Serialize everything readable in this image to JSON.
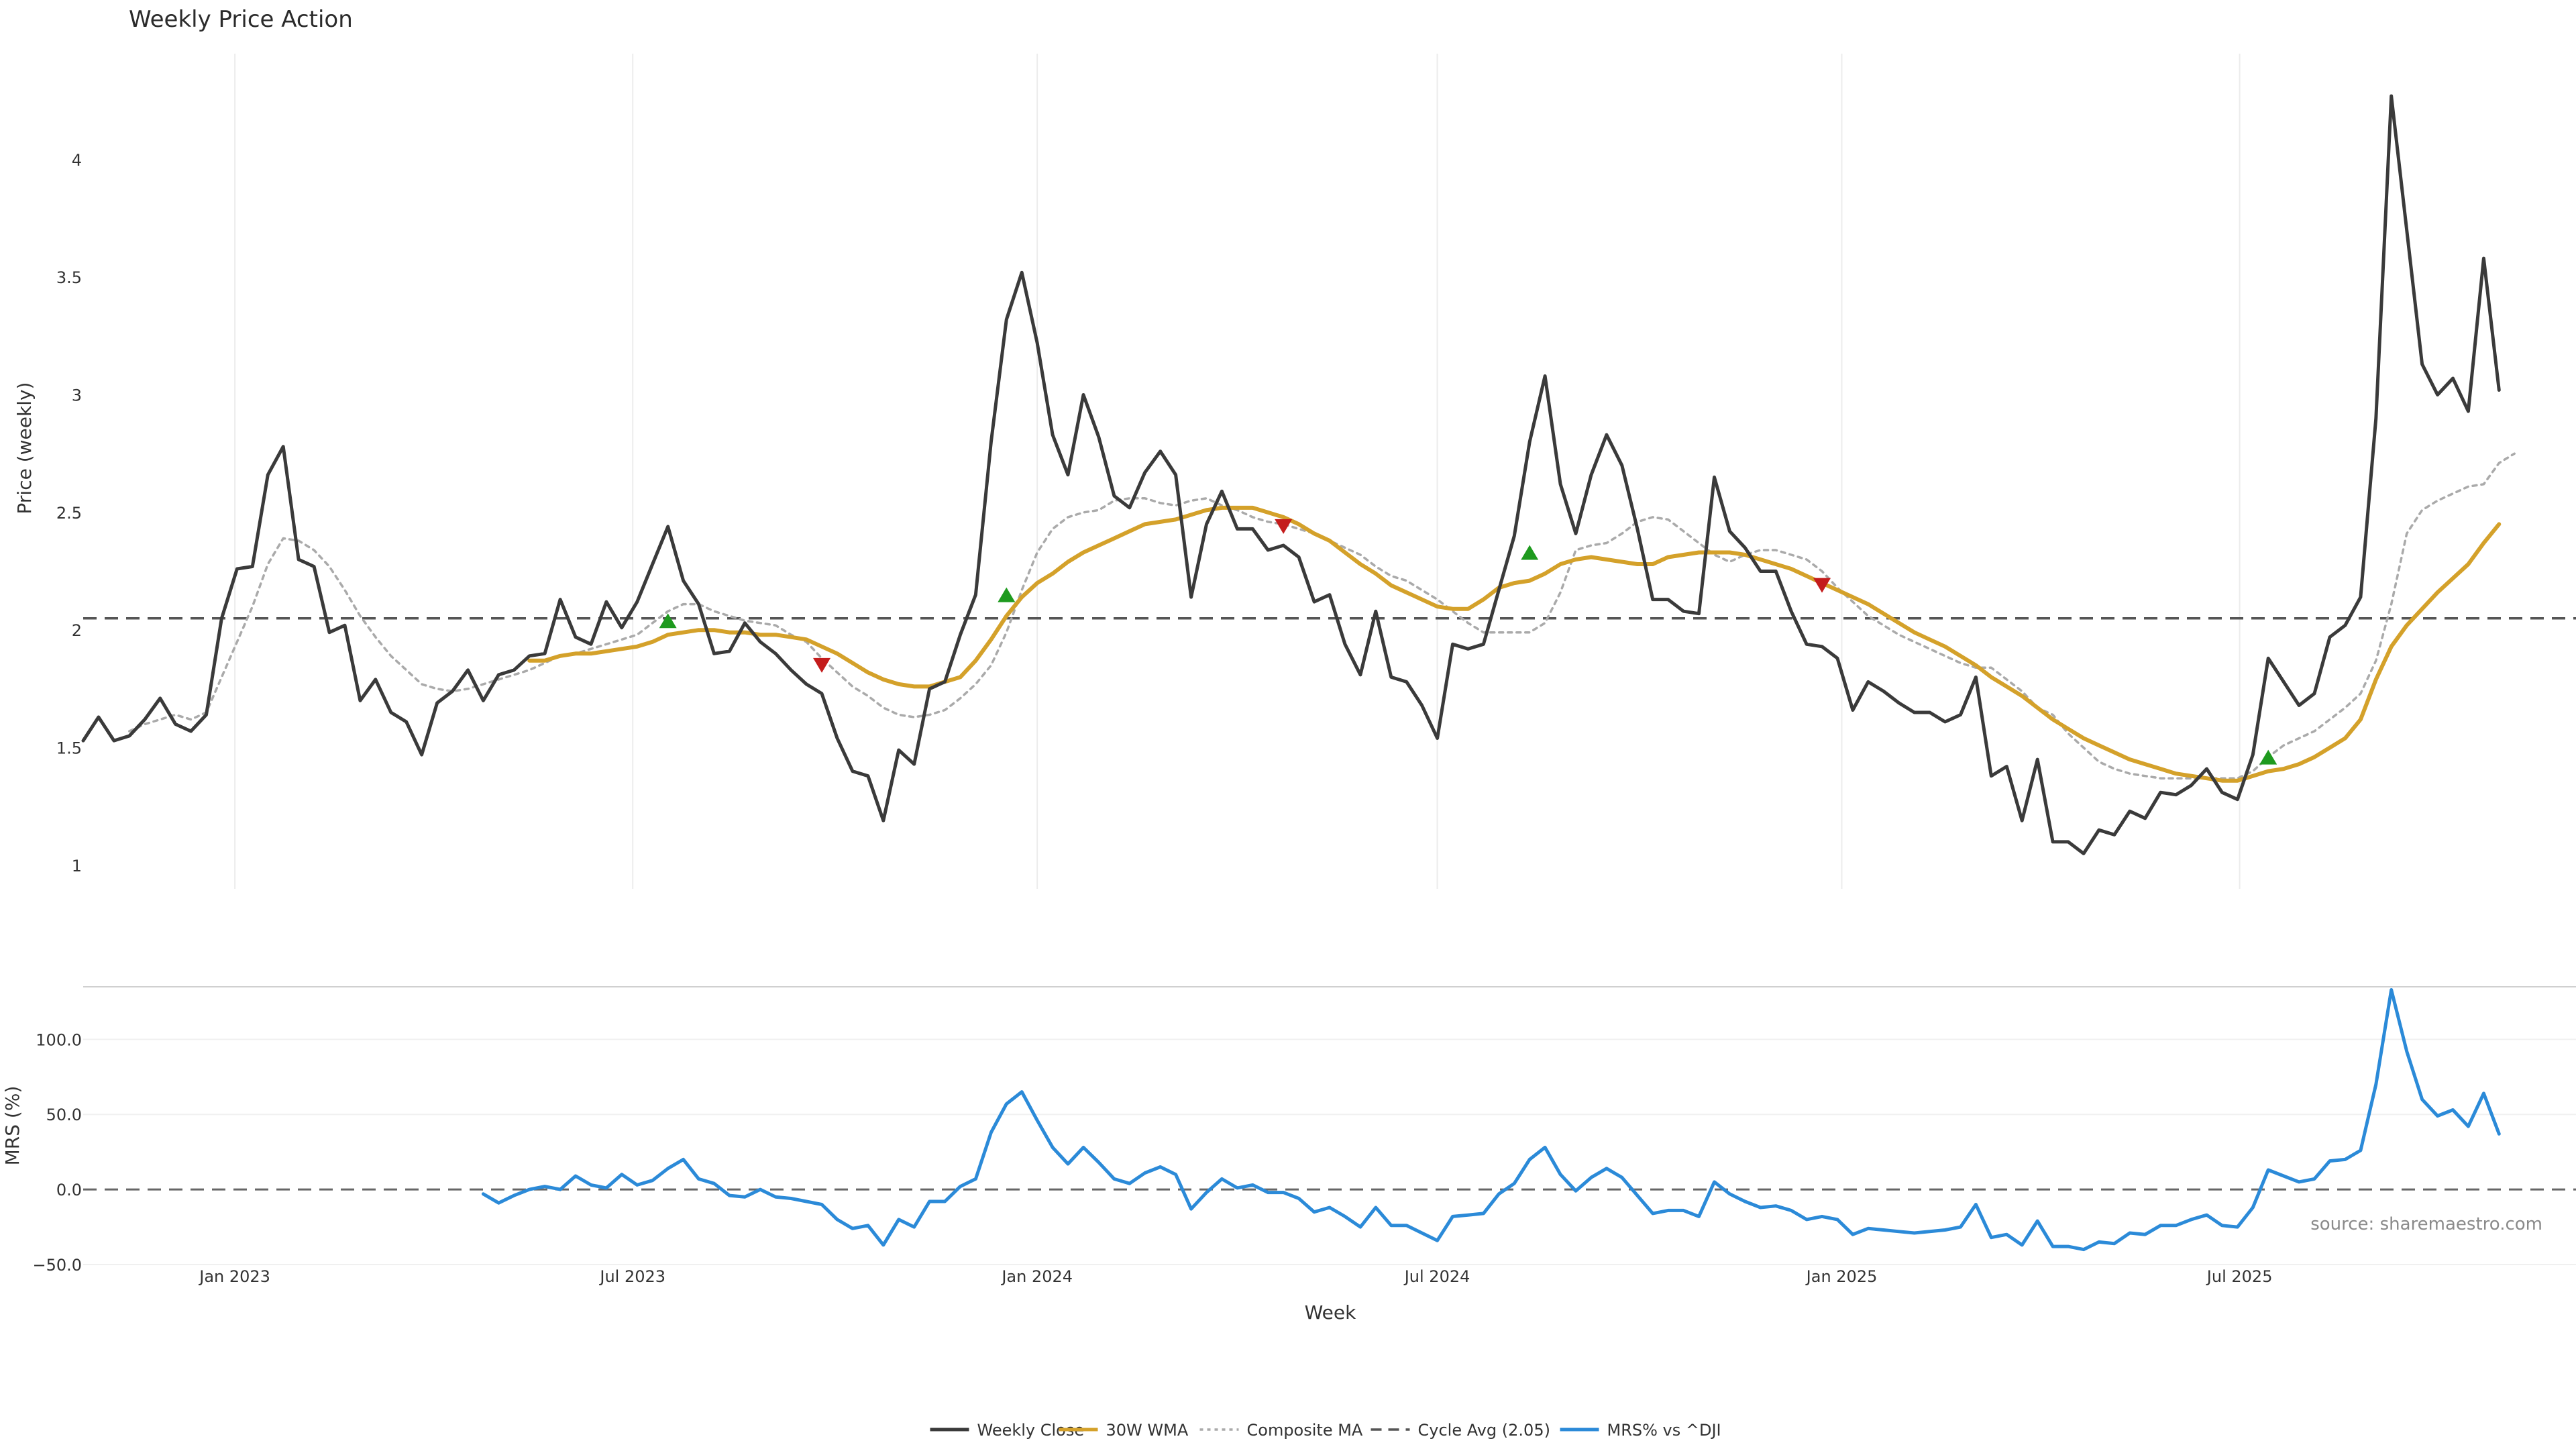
{
  "chart_data": {
    "type": "line",
    "title": "Weekly Price Action",
    "source": "source: sharemaestro.com",
    "x_start": "2022-10-24",
    "xlim": [
      "2022-10-24",
      "2025-12-01"
    ],
    "x_ticks": [
      {
        "date": "2023-01-01",
        "label": "Jan 2023"
      },
      {
        "date": "2023-07-01",
        "label": "Jul 2023"
      },
      {
        "date": "2024-01-01",
        "label": "Jan 2024"
      },
      {
        "date": "2024-07-01",
        "label": "Jul 2024"
      },
      {
        "date": "2025-01-01",
        "label": "Jan 2025"
      },
      {
        "date": "2025-07-01",
        "label": "Jul 2025"
      }
    ],
    "xlabel": "Week",
    "price_panel": {
      "ylabel": "Price (weekly)",
      "ylim": [
        0.9,
        4.45
      ],
      "y_ticks": [
        1,
        1.5,
        2,
        2.5,
        3,
        3.5,
        4
      ],
      "cycle_avg": 2.05,
      "series": [
        {
          "name": "Weekly Close",
          "color": "#3a3a3a",
          "start_index": 0,
          "values": [
            1.53,
            1.63,
            1.53,
            1.55,
            1.62,
            1.71,
            1.6,
            1.57,
            1.64,
            2.05,
            2.26,
            2.27,
            2.66,
            2.78,
            2.3,
            2.27,
            1.99,
            2.02,
            1.7,
            1.79,
            1.65,
            1.61,
            1.47,
            1.69,
            1.74,
            1.83,
            1.7,
            1.81,
            1.83,
            1.89,
            1.9,
            2.13,
            1.97,
            1.94,
            2.12,
            2.01,
            2.12,
            2.28,
            2.44,
            2.21,
            2.11,
            1.9,
            1.91,
            2.03,
            1.95,
            1.9,
            1.83,
            1.77,
            1.73,
            1.54,
            1.4,
            1.38,
            1.19,
            1.49,
            1.43,
            1.75,
            1.78,
            1.98,
            2.15,
            2.8,
            3.32,
            3.52,
            3.22,
            2.83,
            2.66,
            3.0,
            2.82,
            2.57,
            2.52,
            2.67,
            2.76,
            2.66,
            2.14,
            2.45,
            2.59,
            2.43,
            2.43,
            2.34,
            2.36,
            2.31,
            2.12,
            2.15,
            1.94,
            1.81,
            2.08,
            1.8,
            1.78,
            1.68,
            1.54,
            1.94,
            1.92,
            1.94,
            2.17,
            2.4,
            2.8,
            3.08,
            2.62,
            2.41,
            2.66,
            2.83,
            2.7,
            2.43,
            2.13,
            2.13,
            2.08,
            2.07,
            2.65,
            2.42,
            2.35,
            2.25,
            2.25,
            2.08,
            1.94,
            1.93,
            1.88,
            1.66,
            1.78,
            1.74,
            1.69,
            1.65,
            1.65,
            1.61,
            1.64,
            1.8,
            1.38,
            1.42,
            1.19,
            1.45,
            1.1,
            1.1,
            1.05,
            1.15,
            1.13,
            1.23,
            1.2,
            1.31,
            1.3,
            1.34,
            1.41,
            1.31,
            1.28,
            1.47,
            1.88,
            1.78,
            1.68,
            1.73,
            1.97,
            2.02,
            2.14,
            2.9,
            4.27,
            3.7,
            3.13,
            3.0,
            3.07,
            2.93,
            3.58,
            3.02
          ]
        },
        {
          "name": "30W WMA",
          "color": "#d4a12a",
          "start_index": 29,
          "values": [
            1.87,
            1.87,
            1.89,
            1.9,
            1.9,
            1.91,
            1.92,
            1.93,
            1.95,
            1.98,
            1.99,
            2.0,
            2.0,
            1.99,
            1.99,
            1.98,
            1.98,
            1.97,
            1.96,
            1.93,
            1.9,
            1.86,
            1.82,
            1.79,
            1.77,
            1.76,
            1.76,
            1.78,
            1.8,
            1.87,
            1.96,
            2.06,
            2.14,
            2.2,
            2.24,
            2.29,
            2.33,
            2.36,
            2.39,
            2.42,
            2.45,
            2.46,
            2.47,
            2.49,
            2.51,
            2.52,
            2.52,
            2.52,
            2.5,
            2.48,
            2.45,
            2.41,
            2.38,
            2.33,
            2.28,
            2.24,
            2.19,
            2.16,
            2.13,
            2.1,
            2.09,
            2.09,
            2.13,
            2.18,
            2.2,
            2.21,
            2.24,
            2.28,
            2.3,
            2.31,
            2.3,
            2.29,
            2.28,
            2.28,
            2.31,
            2.32,
            2.33,
            2.33,
            2.33,
            2.32,
            2.3,
            2.28,
            2.26,
            2.23,
            2.2,
            2.17,
            2.14,
            2.11,
            2.07,
            2.03,
            1.99,
            1.96,
            1.93,
            1.89,
            1.85,
            1.8,
            1.76,
            1.72,
            1.67,
            1.62,
            1.58,
            1.54,
            1.51,
            1.48,
            1.45,
            1.43,
            1.41,
            1.39,
            1.38,
            1.37,
            1.36,
            1.36,
            1.38,
            1.4,
            1.41,
            1.43,
            1.46,
            1.5,
            1.54,
            1.62,
            1.79,
            1.93,
            2.02,
            2.09,
            2.16,
            2.22,
            2.28,
            2.37,
            2.45
          ]
        },
        {
          "name": "Composite MA",
          "color": "#aaaaaa",
          "start_index": 3,
          "values": [
            1.57,
            1.6,
            1.62,
            1.64,
            1.62,
            1.65,
            1.8,
            1.95,
            2.1,
            2.28,
            2.39,
            2.38,
            2.34,
            2.27,
            2.17,
            2.06,
            1.97,
            1.89,
            1.83,
            1.77,
            1.75,
            1.74,
            1.75,
            1.77,
            1.79,
            1.81,
            1.83,
            1.86,
            1.89,
            1.9,
            1.92,
            1.94,
            1.96,
            1.98,
            2.03,
            2.08,
            2.11,
            2.11,
            2.08,
            2.06,
            2.04,
            2.03,
            2.02,
            1.98,
            1.95,
            1.88,
            1.82,
            1.76,
            1.72,
            1.67,
            1.64,
            1.63,
            1.64,
            1.66,
            1.71,
            1.77,
            1.85,
            1.99,
            2.17,
            2.33,
            2.43,
            2.48,
            2.5,
            2.51,
            2.55,
            2.56,
            2.56,
            2.54,
            2.53,
            2.55,
            2.56,
            2.53,
            2.51,
            2.48,
            2.46,
            2.45,
            2.43,
            2.41,
            2.38,
            2.35,
            2.32,
            2.27,
            2.23,
            2.21,
            2.17,
            2.13,
            2.08,
            2.03,
            1.99,
            1.99,
            1.99,
            1.99,
            2.03,
            2.16,
            2.34,
            2.36,
            2.37,
            2.41,
            2.46,
            2.48,
            2.47,
            2.42,
            2.37,
            2.32,
            2.29,
            2.32,
            2.34,
            2.34,
            2.32,
            2.3,
            2.25,
            2.18,
            2.12,
            2.06,
            2.02,
            1.98,
            1.95,
            1.92,
            1.89,
            1.86,
            1.84,
            1.84,
            1.79,
            1.74,
            1.67,
            1.64,
            1.56,
            1.5,
            1.44,
            1.41,
            1.39,
            1.38,
            1.37,
            1.37,
            1.37,
            1.37,
            1.37,
            1.37,
            1.4,
            1.46,
            1.51,
            1.54,
            1.57,
            1.62,
            1.67,
            1.73,
            1.87,
            2.11,
            2.41,
            2.51,
            2.55,
            2.58,
            2.61,
            2.62,
            2.71,
            2.75
          ]
        }
      ],
      "buy_signals": [
        {
          "index": 38,
          "value": 2.04
        },
        {
          "index": 60,
          "value": 2.15
        },
        {
          "index": 94,
          "value": 2.33
        },
        {
          "index": 142,
          "value": 1.46
        }
      ],
      "sell_signals": [
        {
          "index": 48,
          "value": 1.85
        },
        {
          "index": 78,
          "value": 2.44
        },
        {
          "index": 113,
          "value": 2.19
        }
      ]
    },
    "mrs_panel": {
      "ylabel": "MRS (%)",
      "ylim": [
        -50,
        135
      ],
      "y_ticks": [
        -50,
        0,
        50,
        100
      ],
      "y_tick_labels": [
        "−50.0",
        "0.0",
        "50.0",
        "100.0"
      ],
      "zero_line": 0,
      "series": {
        "name": "MRS% vs ^DJI",
        "color": "#2b8ad8",
        "start_index": 26,
        "values": [
          -3,
          -9,
          -4,
          0,
          2,
          0,
          9,
          3,
          1,
          10,
          3,
          6,
          14,
          20,
          7,
          4,
          -4,
          -5,
          0,
          -5,
          -6,
          -8,
          -10,
          -20,
          -26,
          -24,
          -37,
          -20,
          -25,
          -8,
          -8,
          2,
          7,
          38,
          57,
          65,
          46,
          28,
          17,
          28,
          18,
          7,
          4,
          11,
          15,
          10,
          -13,
          -2,
          7,
          1,
          3,
          -2,
          -2,
          -6,
          -15,
          -12,
          -18,
          -25,
          -12,
          -24,
          -24,
          -29,
          -34,
          -18,
          -17,
          -16,
          -3,
          4,
          20,
          28,
          10,
          -1,
          8,
          14,
          8,
          -4,
          -16,
          -14,
          -14,
          -18,
          5,
          -3,
          -8,
          -12,
          -11,
          -14,
          -20,
          -18,
          -20,
          -30,
          -26,
          -27,
          -28,
          -29,
          -28,
          -27,
          -25,
          -10,
          -32,
          -30,
          -37,
          -21,
          -38,
          -38,
          -40,
          -35,
          -36,
          -29,
          -30,
          -24,
          -24,
          -20,
          -17,
          -24,
          -25,
          -12,
          13,
          9,
          5,
          7,
          19,
          20,
          26,
          70,
          133,
          92,
          60,
          49,
          53,
          42,
          64,
          37
        ]
      }
    },
    "legend": {
      "placement": "bottom-center",
      "entries": [
        {
          "label": "Weekly Close",
          "color": "#3a3a3a",
          "style": "solid"
        },
        {
          "label": "30W WMA",
          "color": "#d4a12a",
          "style": "solid"
        },
        {
          "label": "Composite MA",
          "color": "#aaaaaa",
          "style": "dotted"
        },
        {
          "label": "Cycle Avg (2.05)",
          "color": "#555555",
          "style": "dashed"
        },
        {
          "label": "MRS% vs ^DJI",
          "color": "#2b8ad8",
          "style": "solid"
        }
      ]
    },
    "signal_colors": {
      "buy": "#1e9a1e",
      "sell": "#c41c1c"
    }
  }
}
